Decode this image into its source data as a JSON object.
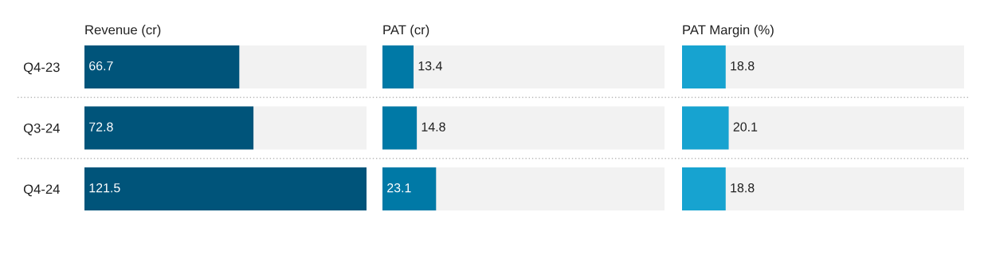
{
  "chart_data": [
    {
      "type": "bar",
      "orientation": "horizontal",
      "title": "Revenue (cr)",
      "categories": [
        "Q4-23",
        "Q3-24",
        "Q4-24"
      ],
      "values": [
        66.7,
        72.8,
        121.5
      ],
      "color": "#00547a",
      "xlim": [
        0,
        121.5
      ],
      "data_labels": true,
      "tick_labels": "y",
      "grid": false,
      "legend": false
    },
    {
      "type": "bar",
      "orientation": "horizontal",
      "title": "PAT (cr)",
      "categories": [
        null,
        null,
        null
      ],
      "values": [
        13.4,
        14.8,
        23.1
      ],
      "color": "#0079a6",
      "xlim": [
        0,
        121.5
      ],
      "data_labels": true,
      "tick_labels": false,
      "grid": false,
      "legend": false
    },
    {
      "type": "bar",
      "orientation": "horizontal",
      "title": "PAT Margin (%)",
      "categories": [
        null,
        null,
        null
      ],
      "values": [
        18.8,
        20.1,
        18.8
      ],
      "color": "#17a3d0",
      "xlim": [
        0,
        121.5
      ],
      "data_labels": true,
      "tick_labels": false,
      "grid": false,
      "legend": false
    }
  ]
}
